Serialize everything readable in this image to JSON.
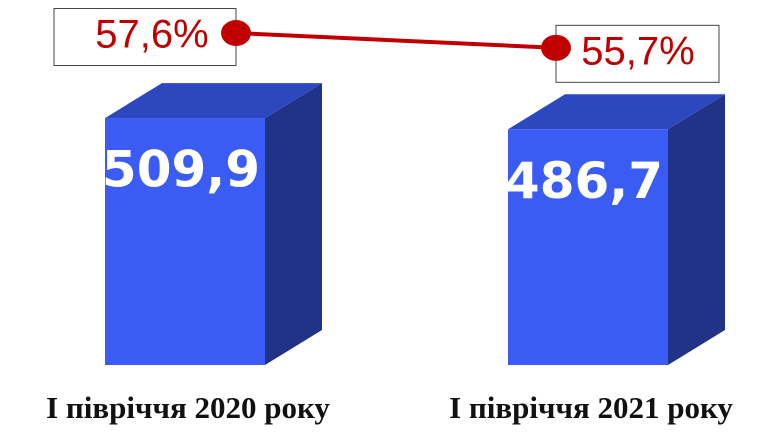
{
  "chart_data": {
    "type": "bar",
    "categories": [
      "I півріччя 2020 року",
      "I півріччя 2021 року"
    ],
    "series": [
      {
        "type": "bar",
        "color": "#3a5cf5",
        "values": [
          509.9,
          486.7
        ],
        "value_labels": [
          "509,9",
          "486,7"
        ]
      },
      {
        "type": "line",
        "axis": "y2",
        "color": "#c00000",
        "values": [
          57.6,
          55.7
        ],
        "value_labels": [
          "57,6%",
          "55,7%"
        ]
      }
    ],
    "ylim": [
      0,
      700
    ],
    "y2lim": [
      15,
      58.5
    ]
  }
}
